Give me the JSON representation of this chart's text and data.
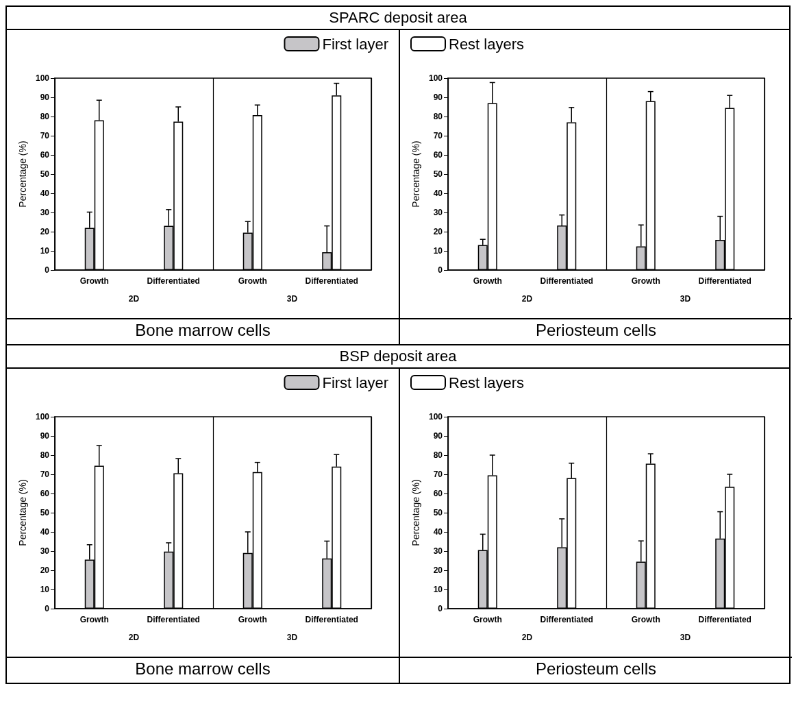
{
  "chart_data": [
    {
      "type": "bar",
      "title": "SPARC deposit area",
      "xlabel": "Bone marrow cells",
      "ylabel": "Percentage (%)",
      "categories": [
        "Growth",
        "Differentiated",
        "Growth",
        "Differentiated"
      ],
      "annotations": [
        "2D",
        "3D"
      ],
      "ylim": [
        0,
        100
      ],
      "yticks": [
        0,
        10,
        20,
        30,
        40,
        50,
        60,
        70,
        80,
        90,
        100
      ],
      "grid": false,
      "legend": "top right",
      "series": [
        {
          "name": "First layer",
          "color": "#c6c5c8",
          "values": [
            22,
            23,
            19.5,
            9.3
          ],
          "errors": [
            [
              22,
              30.2
            ],
            [
              23,
              31.5
            ],
            [
              19.5,
              25.3
            ],
            [
              9.3,
              23
            ]
          ]
        },
        {
          "color": "#ffffff",
          "values": [
            78,
            77.3,
            80.7,
            91
          ],
          "errors": [
            [
              78,
              88.5
            ],
            [
              77.3,
              85
            ],
            [
              80.7,
              86
            ],
            [
              91,
              97.3
            ]
          ]
        }
      ]
    },
    {
      "type": "bar",
      "xlabel": "Periosteum cells",
      "ylabel": "Percentage (%)",
      "categories": [
        "Growth",
        "Differentiated",
        "Growth",
        "Differentiated"
      ],
      "annotations": [
        "2D",
        "3D"
      ],
      "ylim": [
        0,
        100
      ],
      "yticks": [
        0,
        10,
        20,
        30,
        40,
        50,
        60,
        70,
        80,
        90,
        100
      ],
      "grid": false,
      "legend": "top left",
      "series": [
        {
          "color": "#c6c5c8",
          "values": [
            13,
            23.2,
            12.3,
            15.7
          ],
          "errors": [
            [
              13,
              16
            ],
            [
              23.2,
              28.7
            ],
            [
              12.3,
              23.5
            ],
            [
              15.7,
              28
            ]
          ]
        },
        {
          "name": "Rest layers",
          "color": "#ffffff",
          "values": [
            87,
            77,
            88,
            84.5
          ],
          "errors": [
            [
              87,
              97.7
            ],
            [
              77,
              84.7
            ],
            [
              88,
              93
            ],
            [
              84.5,
              91
            ]
          ]
        }
      ]
    },
    {
      "type": "bar",
      "title": "BSP deposit area",
      "xlabel": "Bone marrow cells",
      "ylabel": "Percentage (%)",
      "categories": [
        "Growth",
        "Differentiated",
        "Growth",
        "Differentiated"
      ],
      "annotations": [
        "2D",
        "3D"
      ],
      "ylim": [
        0,
        100
      ],
      "yticks": [
        0,
        10,
        20,
        30,
        40,
        50,
        60,
        70,
        80,
        90,
        100
      ],
      "grid": false,
      "legend": "top right",
      "series": [
        {
          "name": "First layer",
          "color": "#c6c5c8",
          "values": [
            25.5,
            29.7,
            29,
            26.2
          ],
          "errors": [
            [
              25.5,
              33.3
            ],
            [
              29.7,
              34.3
            ],
            [
              29,
              40
            ],
            [
              26.2,
              35.2
            ]
          ]
        },
        {
          "color": "#ffffff",
          "values": [
            74.5,
            70.5,
            71.2,
            74
          ],
          "errors": [
            [
              74.5,
              85
            ],
            [
              70.5,
              78.2
            ],
            [
              71.2,
              76.2
            ],
            [
              74,
              80.3
            ]
          ]
        }
      ]
    },
    {
      "type": "bar",
      "xlabel": "Periosteum cells",
      "ylabel": "Percentage (%)",
      "categories": [
        "Growth",
        "Differentiated",
        "Growth",
        "Differentiated"
      ],
      "annotations": [
        "2D",
        "3D"
      ],
      "ylim": [
        0,
        100
      ],
      "yticks": [
        0,
        10,
        20,
        30,
        40,
        50,
        60,
        70,
        80,
        90,
        100
      ],
      "grid": false,
      "legend": "top left",
      "series": [
        {
          "color": "#c6c5c8",
          "values": [
            30.5,
            32,
            24.5,
            36.5
          ],
          "errors": [
            [
              30.5,
              38.8
            ],
            [
              32,
              46.8
            ],
            [
              24.5,
              35.3
            ],
            [
              36.5,
              50.5
            ]
          ]
        },
        {
          "name": "Rest layers",
          "color": "#ffffff",
          "values": [
            69.5,
            68,
            75.5,
            63.5
          ],
          "errors": [
            [
              69.5,
              80
            ],
            [
              68,
              75.8
            ],
            [
              75.5,
              80.7
            ],
            [
              63.5,
              70
            ]
          ]
        }
      ]
    }
  ]
}
